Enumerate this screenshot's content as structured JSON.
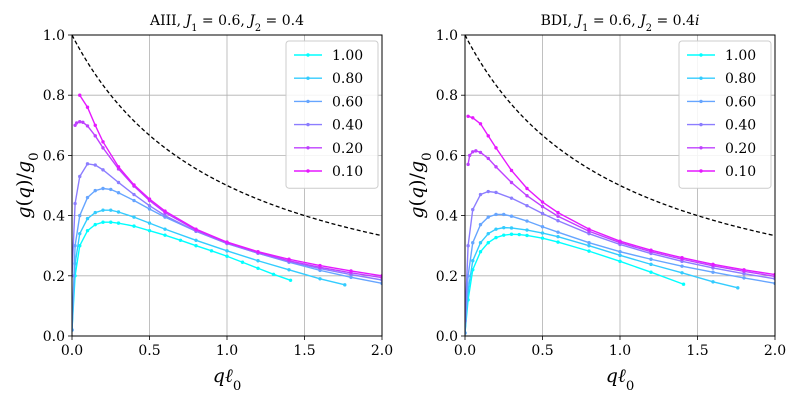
{
  "chart_data": [
    {
      "type": "line",
      "title_parts": [
        "AIII, ",
        "J",
        "1",
        " = 0.6, ",
        "J",
        "2",
        " = 0.4"
      ],
      "xlabel_parts": [
        "q",
        "ℓ",
        "0"
      ],
      "ylabel_parts": [
        "g",
        "(",
        "q",
        ")/",
        "g",
        "0"
      ],
      "xlim": [
        0,
        2.0
      ],
      "ylim": [
        0,
        1.0
      ],
      "xticks": [
        "0.0",
        "0.5",
        "1.0",
        "1.5",
        "2.0"
      ],
      "yticks": [
        "0.0",
        "0.2",
        "0.4",
        "0.6",
        "0.8",
        "1.0"
      ],
      "grid": true,
      "legend_position": "top-right",
      "series": [
        {
          "name": "1.00",
          "color": "#00ffff",
          "x": [
            0.0,
            0.02,
            0.05,
            0.1,
            0.15,
            0.2,
            0.25,
            0.3,
            0.4,
            0.5,
            0.6,
            0.7,
            0.8,
            0.9,
            1.0,
            1.1,
            1.2,
            1.3,
            1.41
          ],
          "y": [
            0.02,
            0.2,
            0.3,
            0.35,
            0.37,
            0.378,
            0.378,
            0.375,
            0.365,
            0.35,
            0.335,
            0.318,
            0.3,
            0.283,
            0.265,
            0.245,
            0.225,
            0.205,
            0.185
          ]
        },
        {
          "name": "0.80",
          "color": "#33ccff",
          "x": [
            0.0,
            0.02,
            0.05,
            0.1,
            0.15,
            0.2,
            0.25,
            0.3,
            0.4,
            0.5,
            0.6,
            0.8,
            1.0,
            1.2,
            1.4,
            1.6,
            1.76
          ],
          "y": [
            0.02,
            0.24,
            0.34,
            0.39,
            0.41,
            0.418,
            0.418,
            0.412,
            0.395,
            0.375,
            0.355,
            0.318,
            0.283,
            0.25,
            0.22,
            0.19,
            0.17
          ]
        },
        {
          "name": "0.60",
          "color": "#66a5ff",
          "x": [
            0.0,
            0.02,
            0.05,
            0.1,
            0.15,
            0.2,
            0.25,
            0.3,
            0.4,
            0.5,
            0.6,
            0.8,
            1.0,
            1.2,
            1.4,
            1.6,
            1.8,
            2.0
          ],
          "y": [
            0.02,
            0.3,
            0.4,
            0.46,
            0.483,
            0.49,
            0.487,
            0.476,
            0.45,
            0.422,
            0.395,
            0.348,
            0.308,
            0.275,
            0.245,
            0.218,
            0.195,
            0.175
          ]
        },
        {
          "name": "0.40",
          "color": "#8c7dff",
          "x": [
            0.0,
            0.02,
            0.05,
            0.1,
            0.15,
            0.2,
            0.3,
            0.4,
            0.5,
            0.6,
            0.8,
            1.0,
            1.2,
            1.4,
            1.6,
            1.8,
            2.0
          ],
          "y": [
            0.2,
            0.44,
            0.53,
            0.572,
            0.568,
            0.552,
            0.51,
            0.47,
            0.433,
            0.4,
            0.348,
            0.307,
            0.275,
            0.247,
            0.224,
            0.204,
            0.186
          ]
        },
        {
          "name": "0.20",
          "color": "#bf40ff",
          "x": [
            0.02,
            0.03,
            0.05,
            0.07,
            0.1,
            0.15,
            0.2,
            0.3,
            0.4,
            0.5,
            0.6,
            0.8,
            1.0,
            1.2,
            1.4,
            1.6,
            1.8,
            2.0
          ],
          "y": [
            0.7,
            0.708,
            0.712,
            0.71,
            0.698,
            0.665,
            0.625,
            0.555,
            0.498,
            0.45,
            0.41,
            0.352,
            0.31,
            0.278,
            0.25,
            0.228,
            0.21,
            0.194
          ]
        },
        {
          "name": "0.10",
          "color": "#e619ff",
          "x": [
            0.05,
            0.1,
            0.15,
            0.2,
            0.3,
            0.4,
            0.5,
            0.6,
            0.8,
            1.0,
            1.2,
            1.4,
            1.6,
            1.8,
            2.0
          ],
          "y": [
            0.8,
            0.76,
            0.7,
            0.645,
            0.562,
            0.502,
            0.455,
            0.415,
            0.355,
            0.312,
            0.28,
            0.255,
            0.234,
            0.216,
            0.2
          ]
        }
      ],
      "reference_curve": {
        "style": "dashed",
        "color": "#000000",
        "formula": "1/(1+q)"
      }
    },
    {
      "type": "line",
      "title_parts": [
        "BDI, ",
        "J",
        "1",
        " = 0.6, ",
        "J",
        "2",
        " = 0.4",
        "i"
      ],
      "xlabel_parts": [
        "q",
        "ℓ",
        "0"
      ],
      "ylabel_parts": [
        "g",
        "(",
        "q",
        ")/",
        "g",
        "0"
      ],
      "xlim": [
        0,
        2.0
      ],
      "ylim": [
        0,
        1.0
      ],
      "xticks": [
        "0.0",
        "0.5",
        "1.0",
        "1.5",
        "2.0"
      ],
      "yticks": [
        "0.0",
        "0.2",
        "0.4",
        "0.6",
        "0.8",
        "1.0"
      ],
      "grid": true,
      "legend_position": "top-right",
      "series": [
        {
          "name": "1.00",
          "color": "#00ffff",
          "x": [
            0.0,
            0.02,
            0.05,
            0.1,
            0.15,
            0.2,
            0.25,
            0.3,
            0.35,
            0.4,
            0.5,
            0.6,
            0.8,
            1.0,
            1.2,
            1.41
          ],
          "y": [
            0.01,
            0.12,
            0.22,
            0.28,
            0.31,
            0.327,
            0.335,
            0.338,
            0.337,
            0.334,
            0.325,
            0.312,
            0.282,
            0.248,
            0.212,
            0.172
          ]
        },
        {
          "name": "0.80",
          "color": "#33ccff",
          "x": [
            0.0,
            0.02,
            0.05,
            0.1,
            0.15,
            0.2,
            0.25,
            0.3,
            0.4,
            0.5,
            0.6,
            0.8,
            1.0,
            1.2,
            1.4,
            1.6,
            1.76
          ],
          "y": [
            0.01,
            0.15,
            0.25,
            0.31,
            0.34,
            0.355,
            0.36,
            0.359,
            0.352,
            0.342,
            0.33,
            0.3,
            0.268,
            0.238,
            0.21,
            0.18,
            0.16
          ]
        },
        {
          "name": "0.60",
          "color": "#66a5ff",
          "x": [
            0.0,
            0.02,
            0.05,
            0.1,
            0.15,
            0.2,
            0.25,
            0.3,
            0.4,
            0.5,
            0.6,
            0.8,
            1.0,
            1.2,
            1.4,
            1.6,
            1.8,
            2.0
          ],
          "y": [
            0.01,
            0.2,
            0.31,
            0.37,
            0.395,
            0.404,
            0.404,
            0.398,
            0.382,
            0.363,
            0.345,
            0.31,
            0.28,
            0.255,
            0.232,
            0.212,
            0.193,
            0.175
          ]
        },
        {
          "name": "0.40",
          "color": "#8c7dff",
          "x": [
            0.0,
            0.02,
            0.05,
            0.1,
            0.15,
            0.2,
            0.3,
            0.4,
            0.5,
            0.6,
            0.8,
            1.0,
            1.2,
            1.4,
            1.6,
            1.8,
            2.0
          ],
          "y": [
            0.05,
            0.3,
            0.42,
            0.47,
            0.48,
            0.477,
            0.458,
            0.433,
            0.407,
            0.383,
            0.34,
            0.304,
            0.274,
            0.248,
            0.226,
            0.207,
            0.19
          ]
        },
        {
          "name": "0.20",
          "color": "#bf40ff",
          "x": [
            0.02,
            0.03,
            0.05,
            0.07,
            0.1,
            0.15,
            0.2,
            0.3,
            0.4,
            0.5,
            0.6,
            0.8,
            1.0,
            1.2,
            1.4,
            1.6,
            1.8,
            2.0
          ],
          "y": [
            0.57,
            0.6,
            0.612,
            0.615,
            0.61,
            0.59,
            0.562,
            0.51,
            0.466,
            0.43,
            0.398,
            0.348,
            0.31,
            0.28,
            0.255,
            0.233,
            0.215,
            0.198
          ]
        },
        {
          "name": "0.10",
          "color": "#e619ff",
          "x": [
            0.02,
            0.05,
            0.1,
            0.15,
            0.2,
            0.3,
            0.4,
            0.5,
            0.6,
            0.8,
            1.0,
            1.2,
            1.4,
            1.6,
            1.8,
            2.0
          ],
          "y": [
            0.73,
            0.725,
            0.705,
            0.665,
            0.625,
            0.55,
            0.49,
            0.445,
            0.41,
            0.355,
            0.315,
            0.285,
            0.26,
            0.238,
            0.22,
            0.204
          ]
        }
      ],
      "reference_curve": {
        "style": "dashed",
        "color": "#000000",
        "formula": "1/(1+q)"
      }
    }
  ]
}
